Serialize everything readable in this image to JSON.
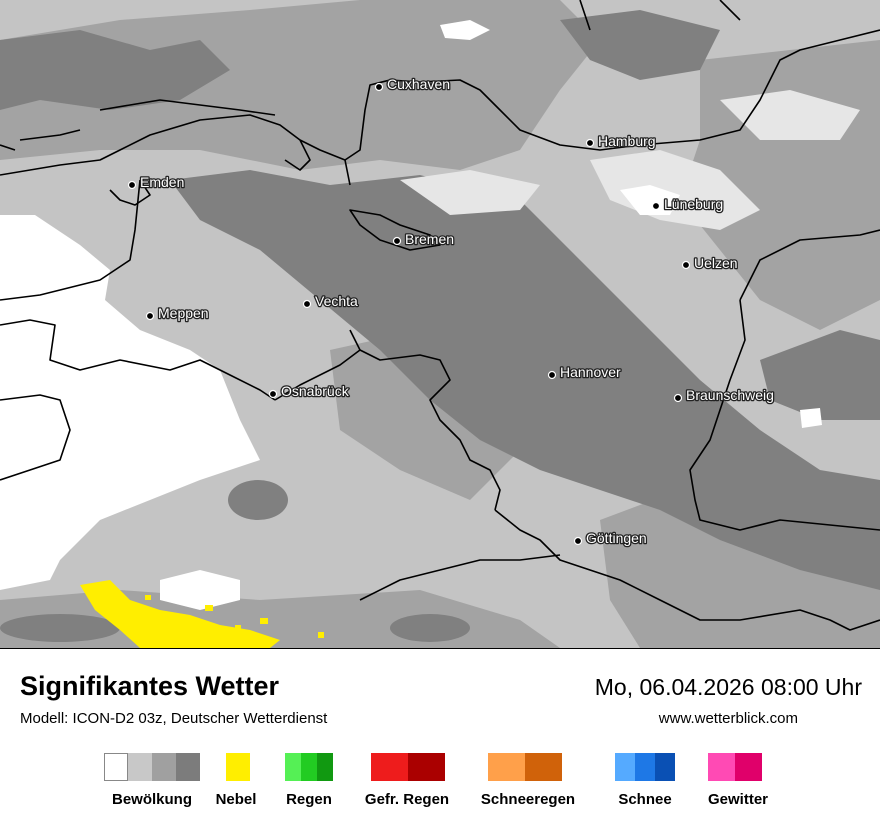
{
  "map": {
    "cities": [
      {
        "name": "Cuxhaven"
      },
      {
        "name": "Hamburg"
      },
      {
        "name": "Emden"
      },
      {
        "name": "Lüneburg"
      },
      {
        "name": "Bremen"
      },
      {
        "name": "Uelzen"
      },
      {
        "name": "Vechta"
      },
      {
        "name": "Meppen"
      },
      {
        "name": "Hannover"
      },
      {
        "name": "Osnabrück"
      },
      {
        "name": "Braunschweig"
      },
      {
        "name": "Göttingen"
      }
    ]
  },
  "header": {
    "title": "Signifikantes Wetter",
    "subtitle": "Modell: ICON-D2 03z, Deutscher Wetterdienst",
    "datetime": "Mo, 06.04.2026 08:00 Uhr",
    "website": "www.wetterblick.com"
  },
  "legend": [
    {
      "label": "Bewölkung",
      "colors": [
        "#ffffff",
        "#c8c8c8",
        "#a0a0a0",
        "#7c7c7c"
      ]
    },
    {
      "label": "Nebel",
      "colors": [
        "#ffee00"
      ]
    },
    {
      "label": "Regen",
      "colors": [
        "#55f055",
        "#22cc22",
        "#119911"
      ]
    },
    {
      "label": "Gefr. Regen",
      "colors": [
        "#ee1c1c",
        "#aa0000"
      ]
    },
    {
      "label": "Schneeregen",
      "colors": [
        "#ffa04a",
        "#d0620a"
      ]
    },
    {
      "label": "Schnee",
      "colors": [
        "#55aaff",
        "#1e78e6",
        "#0a50b4"
      ]
    },
    {
      "label": "Gewitter",
      "colors": [
        "#ff4ab4",
        "#e0006a"
      ]
    }
  ]
}
